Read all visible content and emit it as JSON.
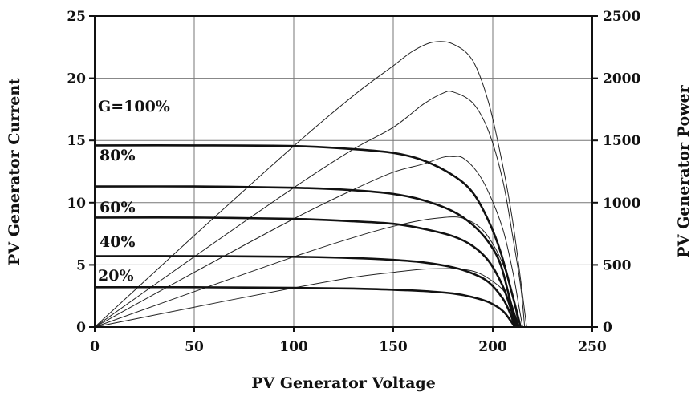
{
  "chart_data": {
    "type": "line",
    "xlabel": "PV Generator Voltage",
    "ylabel": "PV Generator Current",
    "y2label": "PV Generator Power",
    "xlim": [
      0,
      250
    ],
    "ylim": [
      0,
      25
    ],
    "y2lim": [
      0,
      2500
    ],
    "xticks": [
      0,
      50,
      100,
      150,
      200,
      250
    ],
    "yticks": [
      0,
      5,
      10,
      15,
      20,
      25
    ],
    "y2ticks": [
      0,
      500,
      1000,
      1500,
      2000,
      2500
    ],
    "grid": true,
    "current_series": [
      {
        "label": "G=100%",
        "points": [
          [
            0,
            14.6
          ],
          [
            50,
            14.6
          ],
          [
            100,
            14.55
          ],
          [
            130,
            14.3
          ],
          [
            150,
            14.0
          ],
          [
            165,
            13.4
          ],
          [
            180,
            12.2
          ],
          [
            190,
            10.8
          ],
          [
            198,
            8.5
          ],
          [
            204,
            6.0
          ],
          [
            210,
            2.5
          ],
          [
            214,
            0
          ]
        ]
      },
      {
        "label": "80%",
        "points": [
          [
            0,
            11.3
          ],
          [
            50,
            11.3
          ],
          [
            100,
            11.2
          ],
          [
            130,
            11.0
          ],
          [
            150,
            10.7
          ],
          [
            165,
            10.2
          ],
          [
            180,
            9.3
          ],
          [
            190,
            8.2
          ],
          [
            198,
            6.8
          ],
          [
            204,
            5.0
          ],
          [
            209,
            2.0
          ],
          [
            213,
            0
          ]
        ]
      },
      {
        "label": "60%",
        "points": [
          [
            0,
            8.8
          ],
          [
            50,
            8.8
          ],
          [
            100,
            8.7
          ],
          [
            130,
            8.5
          ],
          [
            150,
            8.3
          ],
          [
            165,
            7.9
          ],
          [
            180,
            7.3
          ],
          [
            190,
            6.5
          ],
          [
            198,
            5.3
          ],
          [
            205,
            3.3
          ],
          [
            209,
            1.5
          ],
          [
            212,
            0
          ]
        ]
      },
      {
        "label": "40%",
        "points": [
          [
            0,
            5.7
          ],
          [
            50,
            5.7
          ],
          [
            100,
            5.65
          ],
          [
            130,
            5.55
          ],
          [
            150,
            5.4
          ],
          [
            165,
            5.2
          ],
          [
            180,
            4.8
          ],
          [
            190,
            4.3
          ],
          [
            198,
            3.6
          ],
          [
            205,
            2.3
          ],
          [
            209,
            1.0
          ],
          [
            211,
            0
          ]
        ]
      },
      {
        "label": "20%",
        "points": [
          [
            0,
            3.2
          ],
          [
            50,
            3.2
          ],
          [
            100,
            3.15
          ],
          [
            130,
            3.1
          ],
          [
            150,
            3.0
          ],
          [
            165,
            2.9
          ],
          [
            180,
            2.7
          ],
          [
            190,
            2.4
          ],
          [
            198,
            2.0
          ],
          [
            205,
            1.3
          ],
          [
            209,
            0.5
          ],
          [
            211,
            0
          ]
        ]
      }
    ],
    "power_series": [
      {
        "points": [
          [
            0,
            0
          ],
          [
            50,
            735
          ],
          [
            100,
            1455
          ],
          [
            130,
            1860
          ],
          [
            150,
            2100
          ],
          [
            160,
            2220
          ],
          [
            170,
            2290
          ],
          [
            180,
            2275
          ],
          [
            190,
            2140
          ],
          [
            198,
            1800
          ],
          [
            205,
            1300
          ],
          [
            210,
            850
          ],
          [
            214,
            380
          ],
          [
            217,
            0
          ]
        ]
      },
      {
        "points": [
          [
            0,
            0
          ],
          [
            50,
            565
          ],
          [
            100,
            1120
          ],
          [
            130,
            1430
          ],
          [
            150,
            1605
          ],
          [
            165,
            1790
          ],
          [
            175,
            1880
          ],
          [
            180,
            1890
          ],
          [
            190,
            1800
          ],
          [
            198,
            1570
          ],
          [
            205,
            1180
          ],
          [
            210,
            730
          ],
          [
            214,
            330
          ],
          [
            216,
            0
          ]
        ]
      },
      {
        "points": [
          [
            0,
            0
          ],
          [
            50,
            440
          ],
          [
            100,
            870
          ],
          [
            130,
            1105
          ],
          [
            150,
            1245
          ],
          [
            165,
            1310
          ],
          [
            175,
            1365
          ],
          [
            180,
            1370
          ],
          [
            185,
            1360
          ],
          [
            192,
            1250
          ],
          [
            198,
            1080
          ],
          [
            205,
            790
          ],
          [
            210,
            450
          ],
          [
            213,
            180
          ],
          [
            215,
            0
          ]
        ]
      },
      {
        "points": [
          [
            0,
            0
          ],
          [
            50,
            285
          ],
          [
            100,
            565
          ],
          [
            130,
            720
          ],
          [
            150,
            810
          ],
          [
            165,
            860
          ],
          [
            175,
            880
          ],
          [
            180,
            885
          ],
          [
            185,
            875
          ],
          [
            192,
            820
          ],
          [
            198,
            720
          ],
          [
            205,
            510
          ],
          [
            210,
            250
          ],
          [
            213,
            0
          ]
        ]
      },
      {
        "points": [
          [
            0,
            0
          ],
          [
            50,
            160
          ],
          [
            100,
            315
          ],
          [
            130,
            400
          ],
          [
            150,
            440
          ],
          [
            165,
            465
          ],
          [
            175,
            470
          ],
          [
            180,
            470
          ],
          [
            185,
            465
          ],
          [
            192,
            440
          ],
          [
            198,
            390
          ],
          [
            205,
            300
          ],
          [
            209,
            190
          ],
          [
            212,
            0
          ]
        ]
      }
    ]
  }
}
